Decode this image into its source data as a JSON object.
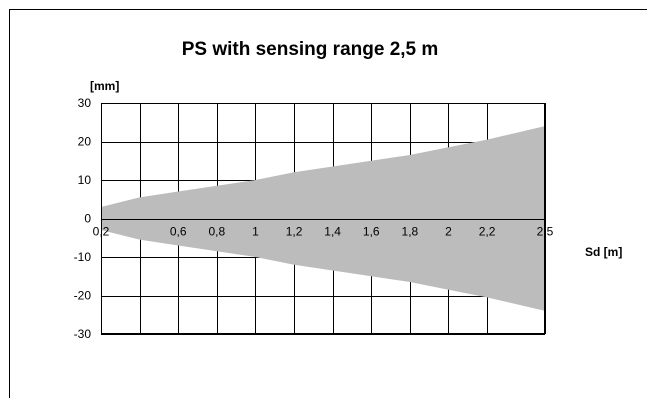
{
  "chart_data": {
    "type": "area",
    "title": "PS with sensing range 2,5 m",
    "xlabel": "Sd [m]",
    "ylabel": "[mm]",
    "xlim": [
      0.2,
      2.5
    ],
    "ylim": [
      -30,
      30
    ],
    "grid": true,
    "x_ticks": [
      0.2,
      0.4,
      0.6,
      0.8,
      1.0,
      1.2,
      1.4,
      1.6,
      1.8,
      2.0,
      2.2,
      2.5
    ],
    "x_tick_labels": [
      "0,2",
      "0,6",
      "0,8",
      "1",
      "1,2",
      "1,4",
      "1,6",
      "1,8",
      "2",
      "2,2",
      "2,5"
    ],
    "x_tick_label_values": [
      0.2,
      0.6,
      0.8,
      1.0,
      1.2,
      1.4,
      1.6,
      1.8,
      2.0,
      2.2,
      2.5
    ],
    "y_ticks": [
      30,
      20,
      10,
      0,
      -10,
      -20,
      -30
    ],
    "y_tick_labels": [
      "30",
      "20",
      "10",
      "0",
      "-10",
      "-20",
      "-30"
    ],
    "series": [
      {
        "x": [
          0.2,
          0.4,
          0.6,
          0.8,
          1.0,
          1.2,
          1.4,
          1.6,
          1.8,
          2.0,
          2.2,
          2.5
        ],
        "upper": [
          3,
          5.5,
          7,
          8.5,
          10,
          12,
          13.5,
          15,
          16.5,
          18.5,
          20.5,
          24
        ],
        "lower": [
          -3,
          -5.5,
          -7,
          -8.5,
          -10,
          -12,
          -13.5,
          -15,
          -16.5,
          -18.5,
          -20.5,
          -24
        ],
        "color": "#bcbcbc"
      }
    ]
  }
}
